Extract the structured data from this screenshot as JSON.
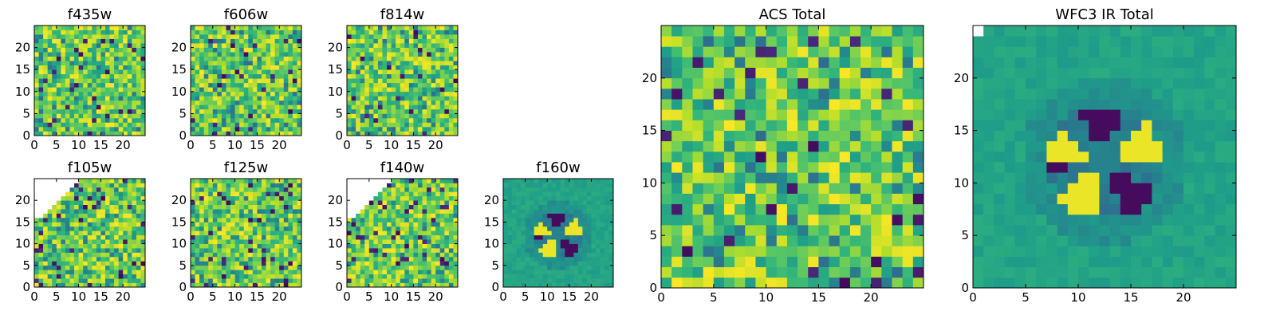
{
  "chart_data": [
    {
      "type": "heatmap",
      "title": "f435w",
      "xlim": [
        0,
        25
      ],
      "ylim": [
        0,
        25
      ],
      "xticks": [
        0,
        5,
        10,
        15,
        20
      ],
      "yticks": [
        0,
        5,
        10,
        15,
        20
      ],
      "xtick_labels": [
        "0",
        "5",
        "10",
        "15",
        "20"
      ],
      "ytick_labels": [
        "0",
        "5",
        "10",
        "15",
        "20"
      ],
      "grid": false,
      "colormap": "viridis"
    },
    {
      "type": "heatmap",
      "title": "f606w",
      "xlim": [
        0,
        25
      ],
      "ylim": [
        0,
        25
      ],
      "xticks": [
        0,
        5,
        10,
        15,
        20
      ],
      "yticks": [
        0,
        5,
        10,
        15,
        20
      ],
      "xtick_labels": [
        "0",
        "5",
        "10",
        "15",
        "20"
      ],
      "ytick_labels": [
        "0",
        "5",
        "10",
        "15",
        "20"
      ],
      "grid": false,
      "colormap": "viridis"
    },
    {
      "type": "heatmap",
      "title": "f814w",
      "xlim": [
        0,
        25
      ],
      "ylim": [
        0,
        25
      ],
      "xticks": [
        0,
        5,
        10,
        15,
        20
      ],
      "yticks": [
        0,
        5,
        10,
        15,
        20
      ],
      "xtick_labels": [
        "0",
        "5",
        "10",
        "15",
        "20"
      ],
      "ytick_labels": [
        "0",
        "5",
        "10",
        "15",
        "20"
      ],
      "grid": false,
      "colormap": "viridis"
    },
    {
      "type": "heatmap",
      "title": "f105w",
      "xlim": [
        0,
        25
      ],
      "ylim": [
        0,
        25
      ],
      "xticks": [
        0,
        5,
        10,
        15,
        20
      ],
      "yticks": [
        0,
        5,
        10,
        15,
        20
      ],
      "xtick_labels": [
        "0",
        "5",
        "10",
        "15",
        "20"
      ],
      "ytick_labels": [
        "0",
        "5",
        "10",
        "15",
        "20"
      ],
      "grid": false,
      "colormap": "viridis",
      "masked_region": "upper-left"
    },
    {
      "type": "heatmap",
      "title": "f125w",
      "xlim": [
        0,
        25
      ],
      "ylim": [
        0,
        25
      ],
      "xticks": [
        0,
        5,
        10,
        15,
        20
      ],
      "yticks": [
        0,
        5,
        10,
        15,
        20
      ],
      "xtick_labels": [
        "0",
        "5",
        "10",
        "15",
        "20"
      ],
      "ytick_labels": [
        "0",
        "5",
        "10",
        "15",
        "20"
      ],
      "grid": false,
      "colormap": "viridis"
    },
    {
      "type": "heatmap",
      "title": "f140w",
      "xlim": [
        0,
        25
      ],
      "ylim": [
        0,
        25
      ],
      "xticks": [
        0,
        5,
        10,
        15,
        20
      ],
      "yticks": [
        0,
        5,
        10,
        15,
        20
      ],
      "xtick_labels": [
        "0",
        "5",
        "10",
        "15",
        "20"
      ],
      "ytick_labels": [
        "0",
        "5",
        "10",
        "15",
        "20"
      ],
      "grid": false,
      "colormap": "viridis",
      "masked_region": "upper-left"
    },
    {
      "type": "heatmap",
      "title": "f160w",
      "xlim": [
        0,
        25
      ],
      "ylim": [
        0,
        25
      ],
      "xticks": [
        0,
        5,
        10,
        15,
        20
      ],
      "yticks": [
        0,
        5,
        10,
        15,
        20
      ],
      "xtick_labels": [
        "0",
        "5",
        "10",
        "15",
        "20"
      ],
      "ytick_labels": [
        "0",
        "5",
        "10",
        "15",
        "20"
      ],
      "grid": false,
      "colormap": "viridis",
      "feature": "ring around center (12, 12)"
    },
    {
      "type": "heatmap",
      "title": "ACS Total",
      "xlim": [
        0,
        25
      ],
      "ylim": [
        0,
        25
      ],
      "xticks": [
        0,
        5,
        10,
        15,
        20
      ],
      "yticks": [
        0,
        5,
        10,
        15,
        20
      ],
      "xtick_labels": [
        "0",
        "5",
        "10",
        "15",
        "20"
      ],
      "ytick_labels": [
        "0",
        "5",
        "10",
        "15",
        "20"
      ],
      "grid": false,
      "colormap": "viridis"
    },
    {
      "type": "heatmap",
      "title": "WFC3 IR Total",
      "xlim": [
        0,
        25
      ],
      "ylim": [
        0,
        25
      ],
      "xticks": [
        0,
        5,
        10,
        15,
        20
      ],
      "yticks": [
        0,
        5,
        10,
        15,
        20
      ],
      "xtick_labels": [
        "0",
        "5",
        "10",
        "15",
        "20"
      ],
      "ytick_labels": [
        "0",
        "5",
        "10",
        "15",
        "20"
      ],
      "grid": false,
      "colormap": "viridis",
      "feature": "ring around center (12, 12)"
    }
  ],
  "colors": {
    "viridis_low": "#440154",
    "viridis_mid": "#21918c",
    "viridis_high": "#fde725",
    "masked": "#ffffff",
    "axes": "#000000"
  }
}
